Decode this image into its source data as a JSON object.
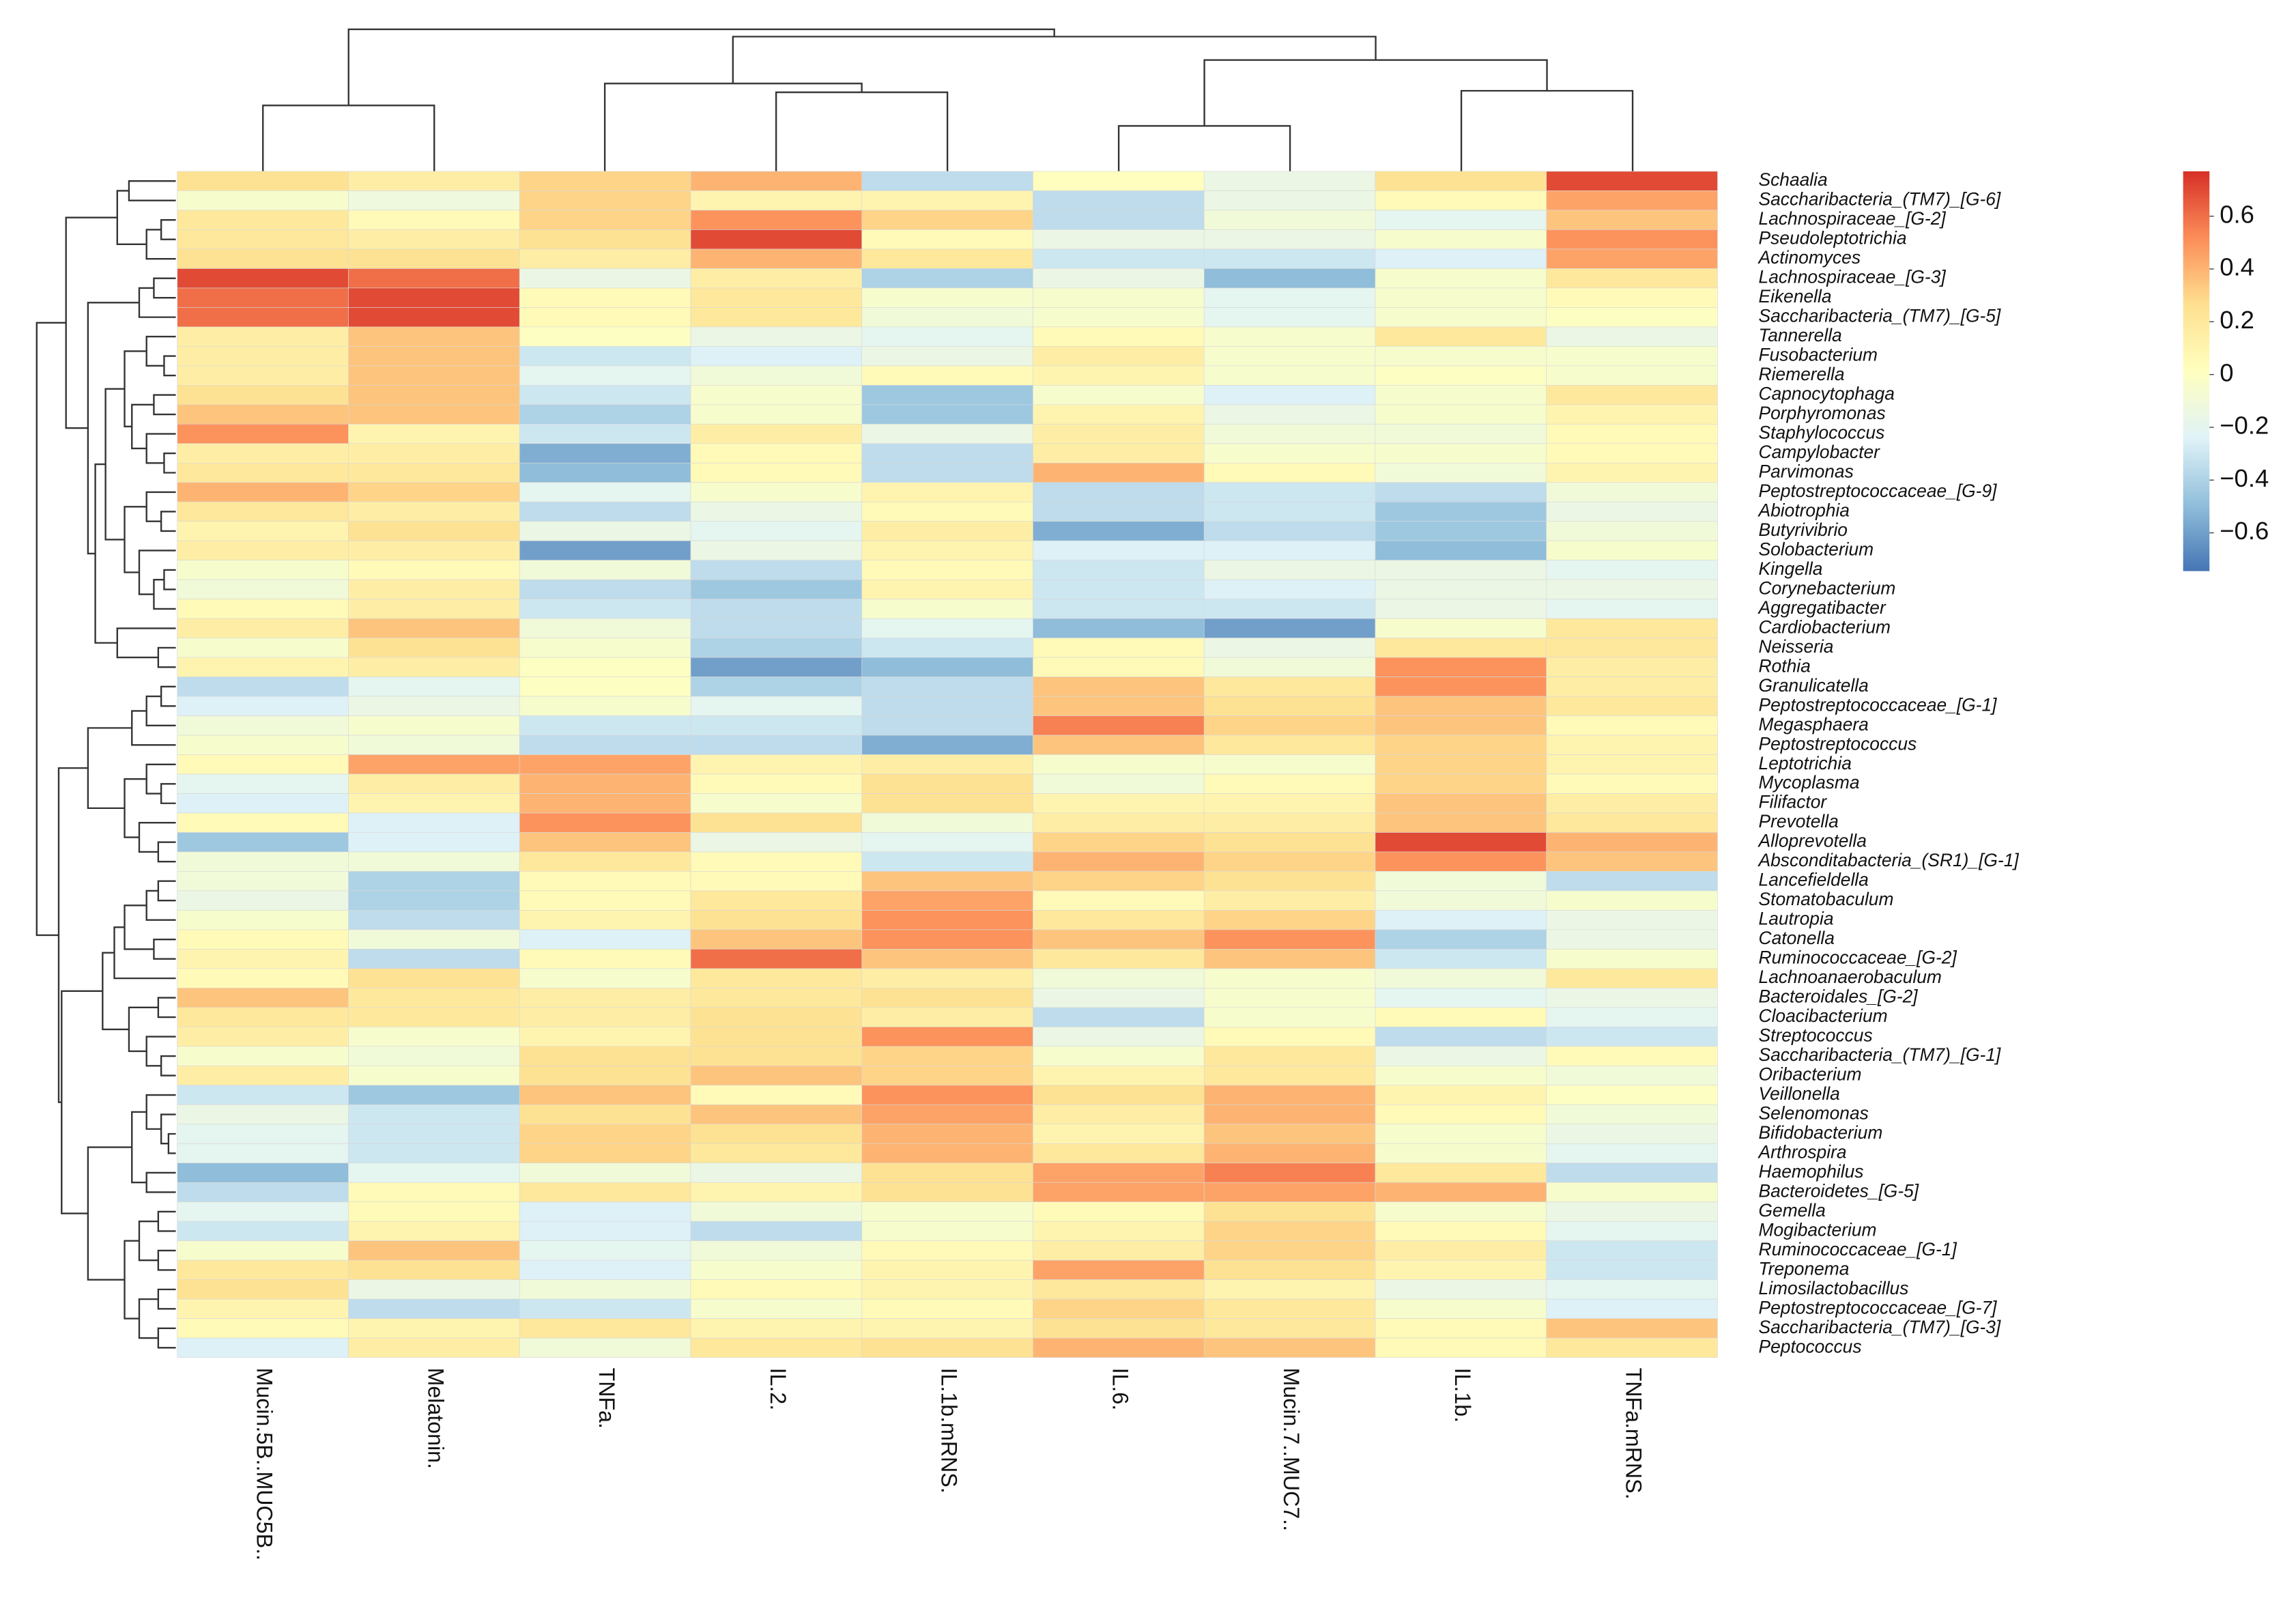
{
  "chart_data": {
    "type": "heatmap",
    "x": [
      "Mucin.5B..MUC5B..",
      "Melatonin.",
      "TNFa.",
      "IL.2.",
      "IL.1b.mRNS.",
      "IL.6.",
      "Mucin.7..MUC7..",
      "IL.1b.",
      "TNFa.mRNS."
    ],
    "y": [
      "Schaalia",
      "Saccharibacteria_(TM7)_[G-6]",
      "Lachnospiraceae_[G-2]",
      "Pseudoleptotrichia",
      "Actinomyces",
      "Lachnospiraceae_[G-3]",
      "Eikenella",
      "Saccharibacteria_(TM7)_[G-5]",
      "Tannerella",
      "Fusobacterium",
      "Riemerella",
      "Capnocytophaga",
      "Porphyromonas",
      "Staphylococcus",
      "Campylobacter",
      "Parvimonas",
      "Peptostreptococcaceae_[G-9]",
      "Abiotrophia",
      "Butyrivibrio",
      "Solobacterium",
      "Kingella",
      "Corynebacterium",
      "Aggregatibacter",
      "Cardiobacterium",
      "Neisseria",
      "Rothia",
      "Granulicatella",
      "Peptostreptococcaceae_[G-1]",
      "Megasphaera",
      "Peptostreptococcus",
      "Leptotrichia",
      "Mycoplasma",
      "Filifactor",
      "Prevotella",
      "Alloprevotella",
      "Absconditabacteria_(SR1)_[G-1]",
      "Lancefieldella",
      "Stomatobaculum",
      "Lautropia",
      "Catonella",
      "Ruminococcaceae_[G-2]",
      "Lachnoanaerobaculum",
      "Bacteroidales_[G-2]",
      "Cloacibacterium",
      "Streptococcus",
      "Saccharibacteria_(TM7)_[G-1]",
      "Oribacterium",
      "Veillonella",
      "Selenomonas",
      "Bifidobacterium",
      "Arthrospira",
      "Haemophilus",
      "Bacteroidetes_[G-5]",
      "Gemella",
      "Mogibacterium",
      "Ruminococcaceae_[G-1]",
      "Treponema",
      "Limosilactobacillus",
      "Peptostreptococcaceae_[G-7]",
      "Saccharibacteria_(TM7)_[G-3]",
      "Peptococcus"
    ],
    "values": [
      [
        0.25,
        0.15,
        0.3,
        0.4,
        -0.35,
        0.02,
        -0.15,
        0.25,
        0.7
      ],
      [
        -0.05,
        -0.12,
        0.3,
        0.1,
        0.1,
        -0.35,
        -0.15,
        0.05,
        0.45
      ],
      [
        0.2,
        0.05,
        0.3,
        0.5,
        0.3,
        -0.35,
        -0.1,
        -0.2,
        0.35
      ],
      [
        0.2,
        0.15,
        0.25,
        0.7,
        0.05,
        -0.15,
        -0.15,
        -0.05,
        0.5
      ],
      [
        0.25,
        0.25,
        0.15,
        0.4,
        0.2,
        -0.3,
        -0.3,
        -0.25,
        0.45
      ],
      [
        0.7,
        0.6,
        -0.15,
        0.15,
        -0.4,
        -0.15,
        -0.5,
        -0.05,
        0.2
      ],
      [
        0.6,
        0.7,
        0.05,
        0.2,
        -0.05,
        -0.05,
        -0.2,
        -0.05,
        0.05
      ],
      [
        0.6,
        0.7,
        0.05,
        0.2,
        -0.1,
        -0.05,
        -0.2,
        -0.05,
        0
      ],
      [
        0.15,
        0.35,
        0,
        -0.15,
        -0.2,
        0.05,
        -0.05,
        0.2,
        -0.15
      ],
      [
        0.15,
        0.35,
        -0.3,
        -0.25,
        -0.15,
        0.15,
        -0.05,
        -0.05,
        -0.05
      ],
      [
        0.15,
        0.35,
        -0.2,
        -0.1,
        0.05,
        0.1,
        -0.05,
        0,
        -0.05
      ],
      [
        0.25,
        0.35,
        -0.3,
        -0.05,
        -0.45,
        -0.05,
        -0.25,
        -0.05,
        0.2
      ],
      [
        0.35,
        0.35,
        -0.4,
        -0.05,
        -0.45,
        0.1,
        -0.15,
        -0.05,
        0.1
      ],
      [
        0.5,
        0.1,
        -0.3,
        0.15,
        -0.15,
        0.15,
        -0.1,
        -0.1,
        0.05
      ],
      [
        0.15,
        0.15,
        -0.55,
        0.05,
        -0.35,
        0.15,
        -0.05,
        -0.05,
        0.05
      ],
      [
        0.2,
        0.2,
        -0.5,
        0.05,
        -0.35,
        0.4,
        0.05,
        -0.1,
        0.1
      ],
      [
        0.4,
        0.3,
        -0.2,
        -0.05,
        0.1,
        -0.35,
        -0.3,
        -0.35,
        -0.1
      ],
      [
        0.2,
        0.15,
        -0.35,
        -0.15,
        0.05,
        -0.35,
        -0.3,
        -0.45,
        -0.15
      ],
      [
        0.1,
        0.25,
        -0.15,
        -0.2,
        0.15,
        -0.55,
        -0.35,
        -0.45,
        -0.1
      ],
      [
        0.15,
        0.15,
        -0.6,
        -0.15,
        0.1,
        -0.25,
        -0.25,
        -0.5,
        -0.05
      ],
      [
        -0.05,
        0.05,
        -0.1,
        -0.35,
        0.05,
        -0.3,
        -0.15,
        -0.15,
        -0.2
      ],
      [
        -0.1,
        0.15,
        -0.35,
        -0.45,
        0.1,
        -0.3,
        -0.25,
        -0.15,
        -0.15
      ],
      [
        0.05,
        0.15,
        -0.3,
        -0.35,
        -0.05,
        -0.3,
        -0.3,
        -0.15,
        -0.2
      ],
      [
        0.15,
        0.35,
        -0.1,
        -0.35,
        -0.2,
        -0.5,
        -0.6,
        -0.05,
        0.2
      ],
      [
        -0.05,
        0.25,
        -0.05,
        -0.4,
        -0.3,
        0.05,
        -0.15,
        0.2,
        0.2
      ],
      [
        0.1,
        0.15,
        0,
        -0.6,
        -0.5,
        0.05,
        -0.1,
        0.5,
        0.15
      ],
      [
        -0.35,
        -0.2,
        0,
        -0.4,
        -0.35,
        0.35,
        0.2,
        0.5,
        0.15
      ],
      [
        -0.25,
        -0.15,
        -0.05,
        -0.2,
        -0.35,
        0.35,
        0.25,
        0.35,
        0.2
      ],
      [
        -0.1,
        -0.05,
        -0.3,
        -0.3,
        -0.35,
        0.55,
        0.3,
        0.35,
        0.05
      ],
      [
        -0.05,
        -0.1,
        -0.35,
        -0.35,
        -0.55,
        0.35,
        0.2,
        0.3,
        0.1
      ],
      [
        0.05,
        0.45,
        0.45,
        0.1,
        0.15,
        -0.05,
        -0.05,
        0.3,
        0.1
      ],
      [
        -0.2,
        0.15,
        0.4,
        0.05,
        0.25,
        -0.1,
        0.05,
        0.3,
        0.05
      ],
      [
        -0.25,
        0.1,
        0.4,
        -0.05,
        0.25,
        0.1,
        0.1,
        0.35,
        0.15
      ],
      [
        0.05,
        -0.25,
        0.5,
        0.25,
        -0.1,
        0.15,
        0.15,
        0.35,
        0.2
      ],
      [
        -0.45,
        -0.25,
        0.35,
        -0.15,
        -0.2,
        0.3,
        0.25,
        0.7,
        0.4
      ],
      [
        -0.1,
        -0.1,
        0.2,
        0.05,
        -0.3,
        0.4,
        0.3,
        0.5,
        0.35
      ],
      [
        -0.1,
        -0.4,
        0.05,
        0.05,
        0.35,
        0.3,
        0.25,
        -0.1,
        -0.35
      ],
      [
        -0.15,
        -0.4,
        0.05,
        0.2,
        0.45,
        0.05,
        0.15,
        -0.1,
        -0.05
      ],
      [
        -0.05,
        -0.35,
        0.1,
        0.25,
        0.5,
        0.2,
        0.3,
        -0.25,
        -0.15
      ],
      [
        0.05,
        -0.1,
        -0.25,
        0.35,
        0.5,
        0.35,
        0.5,
        -0.4,
        -0.15
      ],
      [
        0.1,
        -0.35,
        0.05,
        0.6,
        0.35,
        0.2,
        0.35,
        -0.3,
        -0.05
      ],
      [
        0.05,
        0.25,
        -0.05,
        0.2,
        0.15,
        -0.1,
        -0.05,
        -0.1,
        0.2
      ],
      [
        0.35,
        0.2,
        0.15,
        0.2,
        0.25,
        -0.15,
        -0.05,
        -0.2,
        -0.15
      ],
      [
        0.2,
        0.2,
        0.15,
        0.25,
        0.15,
        -0.35,
        -0.05,
        0.05,
        -0.2
      ],
      [
        0.15,
        -0.05,
        0.1,
        0.25,
        0.5,
        -0.15,
        0.05,
        -0.35,
        -0.3
      ],
      [
        -0.05,
        -0.1,
        0.25,
        0.25,
        0.3,
        -0.05,
        0.2,
        -0.15,
        0.05
      ],
      [
        0.15,
        -0.05,
        0.25,
        0.35,
        0.3,
        0.1,
        0.2,
        -0.05,
        -0.1
      ],
      [
        -0.3,
        -0.45,
        0.35,
        0.05,
        0.5,
        0.25,
        0.4,
        0.1,
        0
      ],
      [
        -0.15,
        -0.3,
        0.25,
        0.35,
        0.45,
        0.15,
        0.4,
        0.05,
        -0.1
      ],
      [
        -0.2,
        -0.3,
        0.3,
        0.25,
        0.4,
        0.1,
        0.35,
        -0.05,
        -0.15
      ],
      [
        -0.2,
        -0.3,
        0.3,
        0.2,
        0.4,
        0.2,
        0.4,
        -0.05,
        -0.2
      ],
      [
        -0.5,
        -0.2,
        -0.1,
        -0.15,
        0.25,
        0.45,
        0.55,
        0.2,
        -0.35
      ],
      [
        -0.35,
        0.05,
        0.2,
        0.1,
        0.25,
        0.45,
        0.45,
        0.4,
        -0.05
      ],
      [
        -0.2,
        0.05,
        -0.25,
        -0.1,
        -0.05,
        0.05,
        0.25,
        -0.05,
        -0.15
      ],
      [
        -0.3,
        0.1,
        -0.25,
        -0.35,
        -0.05,
        0.1,
        0.3,
        0.05,
        -0.2
      ],
      [
        -0.05,
        0.35,
        -0.2,
        -0.1,
        0.05,
        0.15,
        0.3,
        0.15,
        -0.3
      ],
      [
        0.2,
        0.25,
        -0.25,
        -0.05,
        0.1,
        0.45,
        0.25,
        0.1,
        -0.3
      ],
      [
        0.25,
        -0.15,
        -0.1,
        0.05,
        0.1,
        0.2,
        0.1,
        -0.15,
        -0.2
      ],
      [
        0.1,
        -0.35,
        -0.3,
        -0.05,
        0.05,
        0.3,
        0.2,
        -0.05,
        -0.25
      ],
      [
        0.05,
        0.1,
        0.2,
        0.1,
        0.1,
        0.25,
        0.2,
        0.05,
        0.35
      ],
      [
        -0.25,
        0.15,
        -0.1,
        0.2,
        0.25,
        0.4,
        0.35,
        0.05,
        0.2
      ]
    ],
    "colors": [
      "#4575B4",
      "#91BFDB",
      "#E0F3F8",
      "#FFFFBF",
      "#FEE090",
      "#FC8D59",
      "#D73027"
    ],
    "zlim": [
      -0.745,
      0.77
    ],
    "zticks": [
      0.6,
      0.4,
      0.2,
      0,
      {
        "value": -0.2,
        "label": "−0.2"
      },
      {
        "value": -0.4,
        "label": "−0.4"
      },
      {
        "value": -0.6,
        "label": "−0.6"
      }
    ]
  }
}
